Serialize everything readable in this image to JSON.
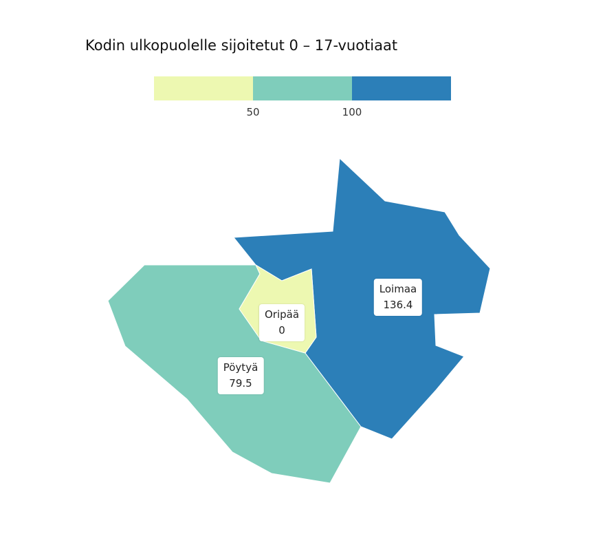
{
  "title": "Kodin ulkopuolelle sijoitetut 0 – 17-vuotiaat",
  "legend": {
    "colors": [
      "#edf8b1",
      "#7fcdbb",
      "#2c7fb8"
    ],
    "breaks": [
      "50",
      "100"
    ]
  },
  "regions": [
    {
      "name": "Oripää",
      "value": "0",
      "color": "#edf8b1"
    },
    {
      "name": "Pöytyä",
      "value": "79.5",
      "color": "#7fcdbb"
    },
    {
      "name": "Loimaa",
      "value": "136.4",
      "color": "#2c7fb8"
    }
  ]
}
